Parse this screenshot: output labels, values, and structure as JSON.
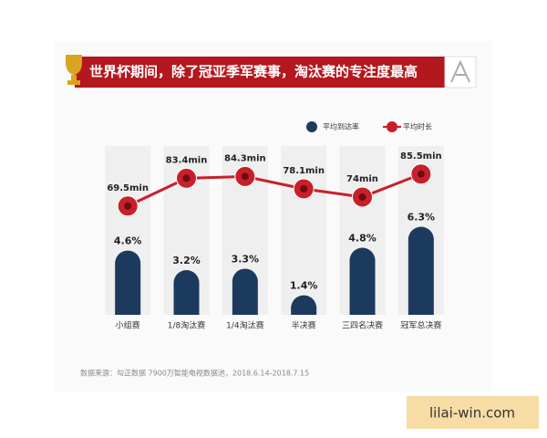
{
  "chart_data": {
    "type": "bar-line",
    "title": "世界杯期间，除了冠亚季军赛事，淘汰赛的专注度最高",
    "categories": [
      "小组赛",
      "1/8淘汰赛",
      "1/4淘汰赛",
      "半决赛",
      "三四名决赛",
      "冠军总决赛"
    ],
    "series": [
      {
        "name": "平均到达率",
        "color": "#1c3a5e",
        "type": "bar",
        "values": [
          4.6,
          3.2,
          3.3,
          1.4,
          4.8,
          6.3
        ],
        "value_labels": [
          "4.6%",
          "3.2%",
          "3.3%",
          "1.4%",
          "4.8%",
          "6.3%"
        ]
      },
      {
        "name": "平均时长",
        "color": "#c8202a",
        "type": "line",
        "axis": "y2",
        "values": [
          69.5,
          83.4,
          84.3,
          78.1,
          74,
          85.5
        ],
        "value_labels": [
          "69.5min",
          "83.4min",
          "84.3min",
          "78.1min",
          "74min",
          "85.5min"
        ]
      }
    ],
    "ylim": [
      0,
      16
    ],
    "y2lim": [
      15,
      127
    ],
    "source": "数据来源：勾正数据 7900万智能电视数据池，2018.6.14-2018.7.15",
    "watermark": "lilai-win.com"
  }
}
